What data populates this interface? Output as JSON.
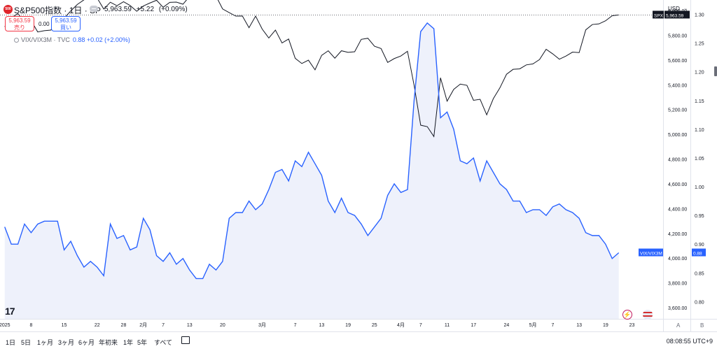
{
  "header": {
    "logo_text": "500",
    "symbol_title": "S&P500指数 · 1日 · SP",
    "price": "5,963.59",
    "change": "+5.22",
    "change_pct": "(+0.09%)",
    "sell_price": "5,963.59",
    "sell_label": "売り",
    "spread": "0.00",
    "buy_price": "5,963.59",
    "buy_label": "買い",
    "overlay_legend": "VIX/VIX3M · TVC",
    "overlay_value": "0.88 +0.02 (+2.00%)",
    "currency": "USD"
  },
  "price_tags": {
    "spx_label": "SPX",
    "spx_value": "5,963.59",
    "vix_label": "VIX/VIX3M",
    "vix_value": "0.88"
  },
  "colors": {
    "spx_line": "#131722",
    "vix_line": "#2962ff",
    "vix_fill": "#eef1fb",
    "sell": "#f23645",
    "buy": "#2962ff"
  },
  "chart_data": {
    "type": "line",
    "x": [
      "2025-01-02",
      "2025-01-03",
      "2025-01-06",
      "2025-01-07",
      "2025-01-08",
      "2025-01-10",
      "2025-01-13",
      "2025-01-14",
      "2025-01-15",
      "2025-01-16",
      "2025-01-17",
      "2025-01-21",
      "2025-01-22",
      "2025-01-23",
      "2025-01-24",
      "2025-01-27",
      "2025-01-28",
      "2025-01-29",
      "2025-01-30",
      "2025-01-31",
      "2025-02-03",
      "2025-02-04",
      "2025-02-05",
      "2025-02-06",
      "2025-02-07",
      "2025-02-10",
      "2025-02-11",
      "2025-02-12",
      "2025-02-13",
      "2025-02-14",
      "2025-02-18",
      "2025-02-19",
      "2025-02-20",
      "2025-02-21",
      "2025-02-24",
      "2025-02-25",
      "2025-02-26",
      "2025-02-27",
      "2025-02-28",
      "2025-03-03",
      "2025-03-04",
      "2025-03-05",
      "2025-03-06",
      "2025-03-07",
      "2025-03-10",
      "2025-03-11",
      "2025-03-12",
      "2025-03-13",
      "2025-03-14",
      "2025-03-17",
      "2025-03-18",
      "2025-03-19",
      "2025-03-20",
      "2025-03-21",
      "2025-03-24",
      "2025-03-25",
      "2025-03-26",
      "2025-03-27",
      "2025-03-28",
      "2025-03-31",
      "2025-04-01",
      "2025-04-02",
      "2025-04-03",
      "2025-04-04",
      "2025-04-07",
      "2025-04-08",
      "2025-04-09",
      "2025-04-10",
      "2025-04-11",
      "2025-04-14",
      "2025-04-15",
      "2025-04-16",
      "2025-04-17",
      "2025-04-21",
      "2025-04-22",
      "2025-04-23",
      "2025-04-24",
      "2025-04-25",
      "2025-04-28",
      "2025-04-29",
      "2025-04-30",
      "2025-05-01",
      "2025-05-02",
      "2025-05-05",
      "2025-05-06",
      "2025-05-07",
      "2025-05-08",
      "2025-05-09",
      "2025-05-12",
      "2025-05-13",
      "2025-05-14",
      "2025-05-15",
      "2025-05-16",
      "2025-05-19"
    ],
    "x_ticks": [
      "2025",
      "8",
      "15",
      "22",
      "28",
      "2月",
      "7",
      "13",
      "20",
      "3月",
      "7",
      "13",
      "19",
      "25",
      "4月",
      "7",
      "11",
      "17",
      "24",
      "5月",
      "7",
      "13",
      "19",
      "23"
    ],
    "series": [
      {
        "name": "SPX",
        "axis": "left",
        "values": [
          5869,
          5942,
          5975,
          5909,
          5918,
          5827,
          5837,
          5842,
          5950,
          5937,
          5997,
          6049,
          6086,
          6119,
          6101,
          6012,
          6067,
          6039,
          6071,
          6040,
          5994,
          6037,
          6061,
          6083,
          6026,
          6066,
          6068,
          6051,
          6115,
          6114,
          6129,
          6144,
          6117,
          6013,
          5983,
          5955,
          5956,
          5861,
          5955,
          5850,
          5778,
          5842,
          5738,
          5770,
          5614,
          5572,
          5599,
          5521,
          5638,
          5675,
          5615,
          5675,
          5662,
          5667,
          5767,
          5776,
          5712,
          5693,
          5581,
          5612,
          5633,
          5671,
          5397,
          5074,
          5062,
          4982,
          5457,
          5268,
          5363,
          5406,
          5396,
          5275,
          5283,
          5158,
          5288,
          5376,
          5485,
          5525,
          5529,
          5561,
          5569,
          5604,
          5687,
          5650,
          5607,
          5632,
          5664,
          5660,
          5844,
          5887,
          5892,
          5917,
          5958,
          5964
        ]
      },
      {
        "name": "VIX/VIX3M",
        "axis": "right",
        "values": [
          0.93,
          0.9,
          0.9,
          0.935,
          0.92,
          0.935,
          0.94,
          0.94,
          0.94,
          0.89,
          0.905,
          0.88,
          0.86,
          0.87,
          0.86,
          0.845,
          0.935,
          0.91,
          0.915,
          0.89,
          0.895,
          0.945,
          0.925,
          0.88,
          0.87,
          0.885,
          0.865,
          0.875,
          0.855,
          0.84,
          0.84,
          0.865,
          0.855,
          0.87,
          0.945,
          0.955,
          0.955,
          0.975,
          0.96,
          0.97,
          0.995,
          1.025,
          1.03,
          1.01,
          1.045,
          1.035,
          1.06,
          1.04,
          1.02,
          0.975,
          0.955,
          0.98,
          0.955,
          0.95,
          0.935,
          0.915,
          0.93,
          0.945,
          0.985,
          1.005,
          0.99,
          0.995,
          1.15,
          1.27,
          1.285,
          1.275,
          1.12,
          1.13,
          1.1,
          1.045,
          1.04,
          1.05,
          1.01,
          1.045,
          1.025,
          1.005,
          0.995,
          0.975,
          0.975,
          0.955,
          0.96,
          0.96,
          0.95,
          0.965,
          0.97,
          0.96,
          0.955,
          0.945,
          0.92,
          0.915,
          0.915,
          0.9,
          0.875,
          0.885
        ]
      }
    ],
    "left_axis": {
      "ylim": [
        3510,
        6085
      ],
      "ticks": [
        "6,000.00",
        "5,800.00",
        "5,600.00",
        "5,400.00",
        "5,200.00",
        "5,000.00",
        "4,800.00",
        "4,600.00",
        "4,400.00",
        "4,200.00",
        "4,000.00",
        "3,800.00",
        "3,600.00"
      ]
    },
    "right_axis": {
      "ylim": [
        0.77,
        1.325
      ],
      "ticks": [
        "1.30",
        "1.25",
        "1.20",
        "1.15",
        "1.10",
        "1.05",
        "1.00",
        "0.95",
        "0.90",
        "0.85",
        "0.80"
      ]
    },
    "grid": false
  },
  "footer": {
    "ranges": [
      "1日",
      "5日",
      "1ヶ月",
      "3ヶ月",
      "6ヶ月",
      "年初来",
      "1年",
      "5年",
      "すべて"
    ],
    "clock": "08:08:55 UTC+9",
    "axis_a": "A",
    "axis_b": "B"
  }
}
